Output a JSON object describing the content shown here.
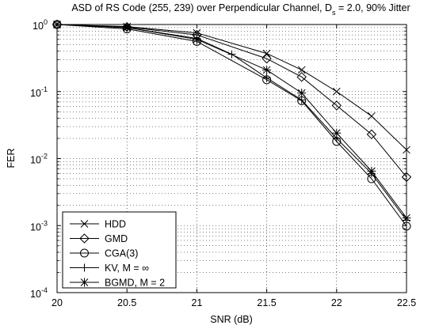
{
  "chart_data": {
    "type": "line",
    "title": {
      "main": "ASD of RS Code (255, 239) over Perpendicular Channel, D",
      "subscript": "s",
      "tail": " = 2.0, 90% Jitter"
    },
    "xlabel": "SNR (dB)",
    "ylabel": "FER",
    "xlim": [
      20,
      22.5
    ],
    "ylim": [
      0.0001,
      1
    ],
    "yscale": "log",
    "grid": true,
    "legend_position": "bottom-left",
    "x_ticks": [
      {
        "value": 20,
        "label": "20"
      },
      {
        "value": 20.5,
        "label": "20.5"
      },
      {
        "value": 21,
        "label": "21"
      },
      {
        "value": 21.5,
        "label": "21.5"
      },
      {
        "value": 22,
        "label": "22"
      },
      {
        "value": 22.5,
        "label": "22.5"
      }
    ],
    "y_ticks": [
      {
        "value": 1,
        "base": "10",
        "exp": "0"
      },
      {
        "value": 0.1,
        "base": "10",
        "exp": "-1"
      },
      {
        "value": 0.01,
        "base": "10",
        "exp": "-2"
      },
      {
        "value": 0.001,
        "base": "10",
        "exp": "-3"
      },
      {
        "value": 0.0001,
        "base": "10",
        "exp": "-4"
      }
    ],
    "series": [
      {
        "name": "HDD",
        "marker": "x",
        "x": [
          20,
          20.5,
          21,
          21.5,
          21.75,
          22,
          22.25,
          22.5
        ],
        "y": [
          1.0,
          0.93,
          0.75,
          0.37,
          0.21,
          0.1,
          0.043,
          0.0135
        ]
      },
      {
        "name": "GMD",
        "marker": "diamond",
        "x": [
          20,
          20.5,
          21,
          21.5,
          21.75,
          22,
          22.25,
          22.5
        ],
        "y": [
          1.0,
          0.92,
          0.7,
          0.31,
          0.165,
          0.062,
          0.023,
          0.0053
        ]
      },
      {
        "name": "CGA(3)",
        "marker": "circle",
        "x": [
          20,
          20.5,
          21,
          21.5,
          21.75,
          22,
          22.25,
          22.5
        ],
        "y": [
          1.0,
          0.86,
          0.56,
          0.15,
          0.073,
          0.018,
          0.005,
          0.00098
        ]
      },
      {
        "name": "KV, M = ∞",
        "marker": "plus",
        "x": [
          20,
          20.5,
          21,
          21.25,
          21.5,
          21.75,
          22,
          22.25,
          22.5
        ],
        "y": [
          1.0,
          0.9,
          0.62,
          0.36,
          0.16,
          0.075,
          0.02,
          0.006,
          0.0012
        ]
      },
      {
        "name": "BGMD, M = 2",
        "marker": "asterisk",
        "x": [
          20,
          20.5,
          21,
          21.5,
          21.75,
          22,
          22.25,
          22.5
        ],
        "y": [
          1.0,
          0.9,
          0.6,
          0.21,
          0.095,
          0.024,
          0.0065,
          0.0013
        ]
      }
    ]
  }
}
